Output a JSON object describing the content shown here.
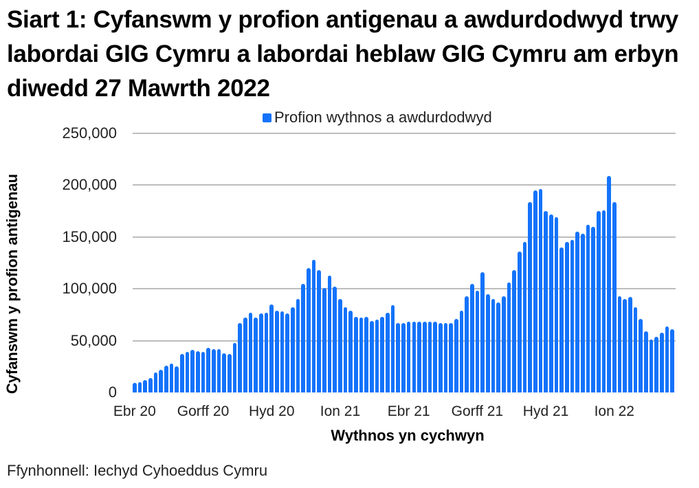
{
  "title": "Siart 1: Cyfanswm y profion antigenau a awdurdodwyd trwy labordai GIG Cymru a labordai heblaw GIG Cymru am erbyn diwedd 27 Mawrth 2022",
  "legend": {
    "label": "Profion wythnos a awdurdodwyd",
    "color": "#1473fa"
  },
  "source": "Ffynhonnell: Iechyd Cyhoeddus Cymru",
  "chart_data": {
    "type": "bar",
    "title": "Siart 1: Cyfanswm y profion antigenau a awdurdodwyd trwy labordai GIG Cymru a labordai heblaw GIG Cymru am erbyn diwedd 27 Mawrth 2022",
    "xlabel": "Wythnos yn cychwyn",
    "ylabel": "Cyfanswm y profion antigenau",
    "ylim": [
      0,
      250000
    ],
    "yticks": [
      "0",
      "50,000",
      "100,000",
      "150,000",
      "200,000",
      "250,000"
    ],
    "xticks": [
      {
        "label": "Ebr 20",
        "index": 0
      },
      {
        "label": "Gorff 20",
        "index": 13
      },
      {
        "label": "Hyd 20",
        "index": 26
      },
      {
        "label": "Ion 21",
        "index": 39
      },
      {
        "label": "Ebr 21",
        "index": 52
      },
      {
        "label": "Gorff 21",
        "index": 65
      },
      {
        "label": "Hyd 21",
        "index": 78
      },
      {
        "label": "Ion 22",
        "index": 91
      }
    ],
    "grid": true,
    "legend_position": "top",
    "series": [
      {
        "name": "Profion wythnos a awdurdodwyd",
        "color": "#1473fa",
        "values": [
          9000,
          10000,
          12000,
          14000,
          19000,
          22000,
          26000,
          28000,
          25000,
          37000,
          39000,
          41000,
          40000,
          39000,
          43000,
          42000,
          42000,
          38000,
          37000,
          48000,
          67000,
          72000,
          77000,
          72000,
          76000,
          77000,
          85000,
          79000,
          78000,
          76000,
          82000,
          90000,
          105000,
          120000,
          128000,
          118000,
          101000,
          113000,
          102000,
          90000,
          82000,
          79000,
          73000,
          72000,
          73000,
          69000,
          70000,
          73000,
          77000,
          84000,
          67000,
          67000,
          68000,
          68000,
          68000,
          68000,
          68000,
          68000,
          67000,
          67000,
          67000,
          71000,
          79000,
          93000,
          105000,
          98000,
          116000,
          95000,
          90000,
          87000,
          93000,
          106000,
          118000,
          136000,
          145000,
          184000,
          195000,
          196000,
          175000,
          172000,
          169000,
          140000,
          145000,
          147000,
          155000,
          153000,
          162000,
          160000,
          175000,
          176000,
          209000,
          184000,
          93000,
          90000,
          92000,
          82000,
          71000,
          59000,
          51000,
          54000,
          58000,
          64000,
          61000
        ]
      }
    ]
  }
}
